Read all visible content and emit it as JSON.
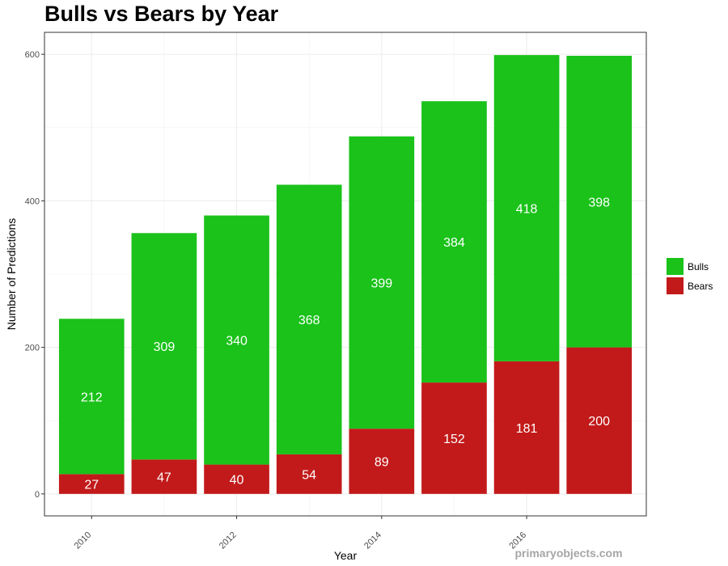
{
  "chart_data": {
    "type": "bar",
    "stacked": true,
    "title": "Bulls vs Bears by Year",
    "xlabel": "Year",
    "ylabel": "Number of Predictions",
    "x": [
      2010,
      2011,
      2012,
      2013,
      2014,
      2015,
      2016,
      2017
    ],
    "x_ticks": [
      "2010",
      "2012",
      "2014",
      "2016"
    ],
    "x_tick_values": [
      2010,
      2012,
      2014,
      2016
    ],
    "y_ticks": [
      "0",
      "200",
      "400",
      "600"
    ],
    "y_tick_values": [
      0,
      200,
      400,
      600
    ],
    "ylim": [
      -30,
      630
    ],
    "xlim": [
      2009.35,
      2017.65
    ],
    "grid": true,
    "legend_position": "right",
    "series": [
      {
        "name": "Bears",
        "color": "#c21a1a",
        "values": [
          27,
          47,
          40,
          54,
          89,
          152,
          181,
          200
        ]
      },
      {
        "name": "Bulls",
        "color": "#1ac21a",
        "values": [
          212,
          309,
          340,
          368,
          399,
          384,
          418,
          398
        ]
      }
    ],
    "legend": [
      {
        "name": "Bulls",
        "color": "#1ac21a"
      },
      {
        "name": "Bears",
        "color": "#c21a1a"
      }
    ]
  },
  "watermark": "primaryobjects.com"
}
